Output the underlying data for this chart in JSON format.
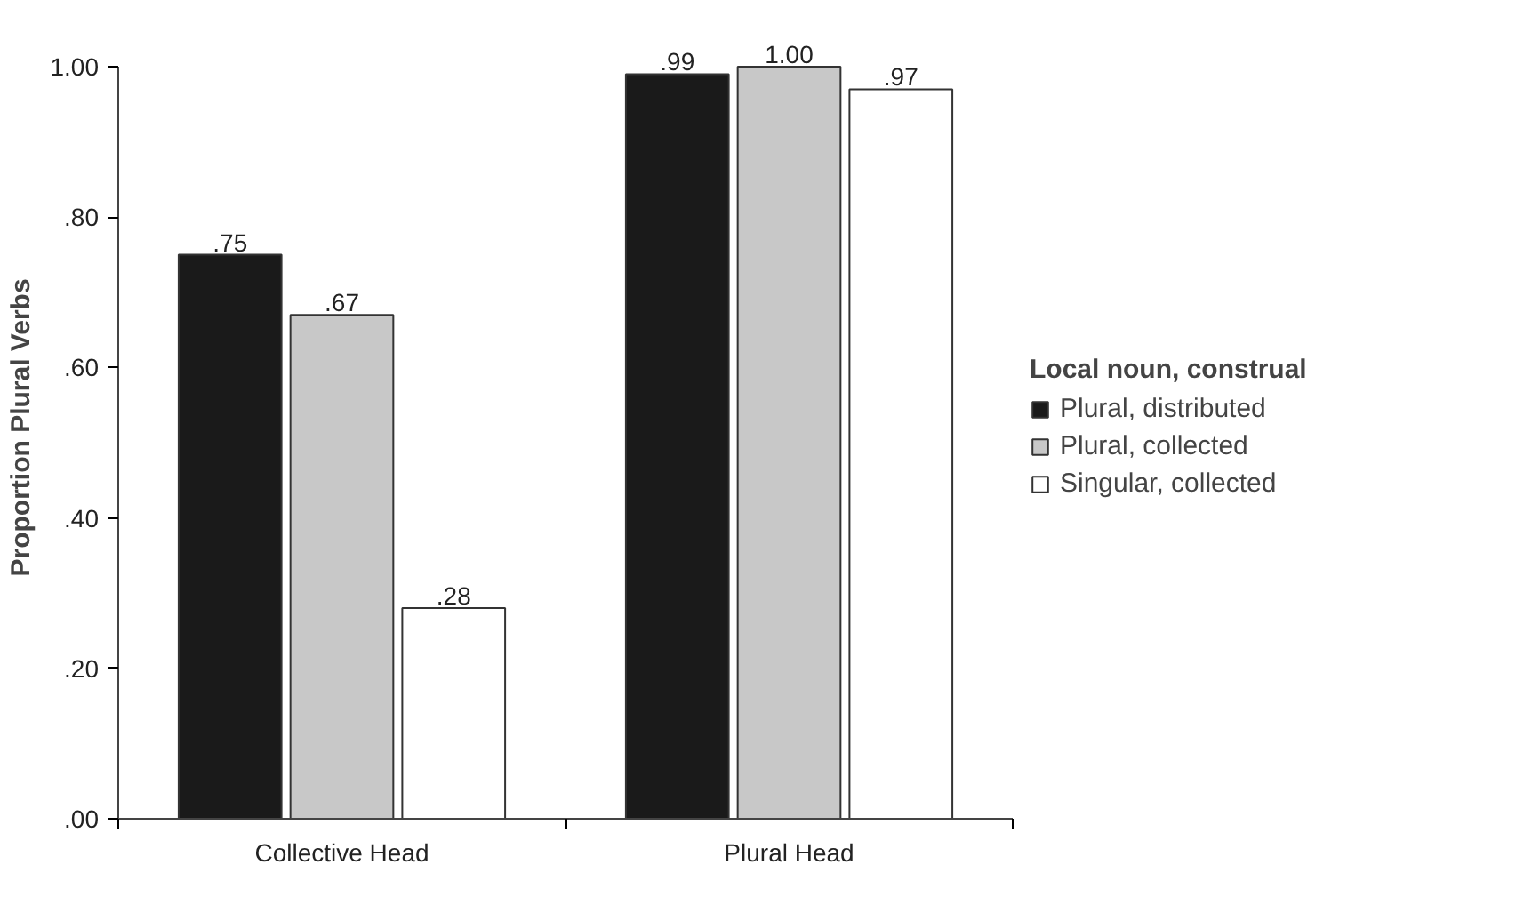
{
  "chart_data": {
    "type": "bar",
    "ylabel": "Proportion Plural Verbs",
    "legend_title": "Local noun, construal",
    "categories": [
      "Collective Head",
      "Plural Head"
    ],
    "series": [
      {
        "name": "Plural, distributed",
        "color": "#1a1a1a",
        "values": [
          0.75,
          0.99
        ],
        "value_labels": [
          ".75",
          ".99"
        ]
      },
      {
        "name": "Plural, collected",
        "color": "#c8c8c8",
        "values": [
          0.67,
          1.0
        ],
        "value_labels": [
          ".67",
          "1.00"
        ]
      },
      {
        "name": "Singular, collected",
        "color": "#ffffff",
        "values": [
          0.28,
          0.97
        ],
        "value_labels": [
          ".28",
          ".97"
        ]
      }
    ],
    "ylim": [
      0,
      1.0
    ],
    "yticks": [
      {
        "value": 0,
        "label": ".00"
      },
      {
        "value": 0.2,
        "label": ".20"
      },
      {
        "value": 0.4,
        "label": ".40"
      },
      {
        "value": 0.6,
        "label": ".60"
      },
      {
        "value": 0.8,
        "label": ".80"
      },
      {
        "value": 1.0,
        "label": "1.00"
      }
    ],
    "grid": false,
    "legend": "right"
  }
}
